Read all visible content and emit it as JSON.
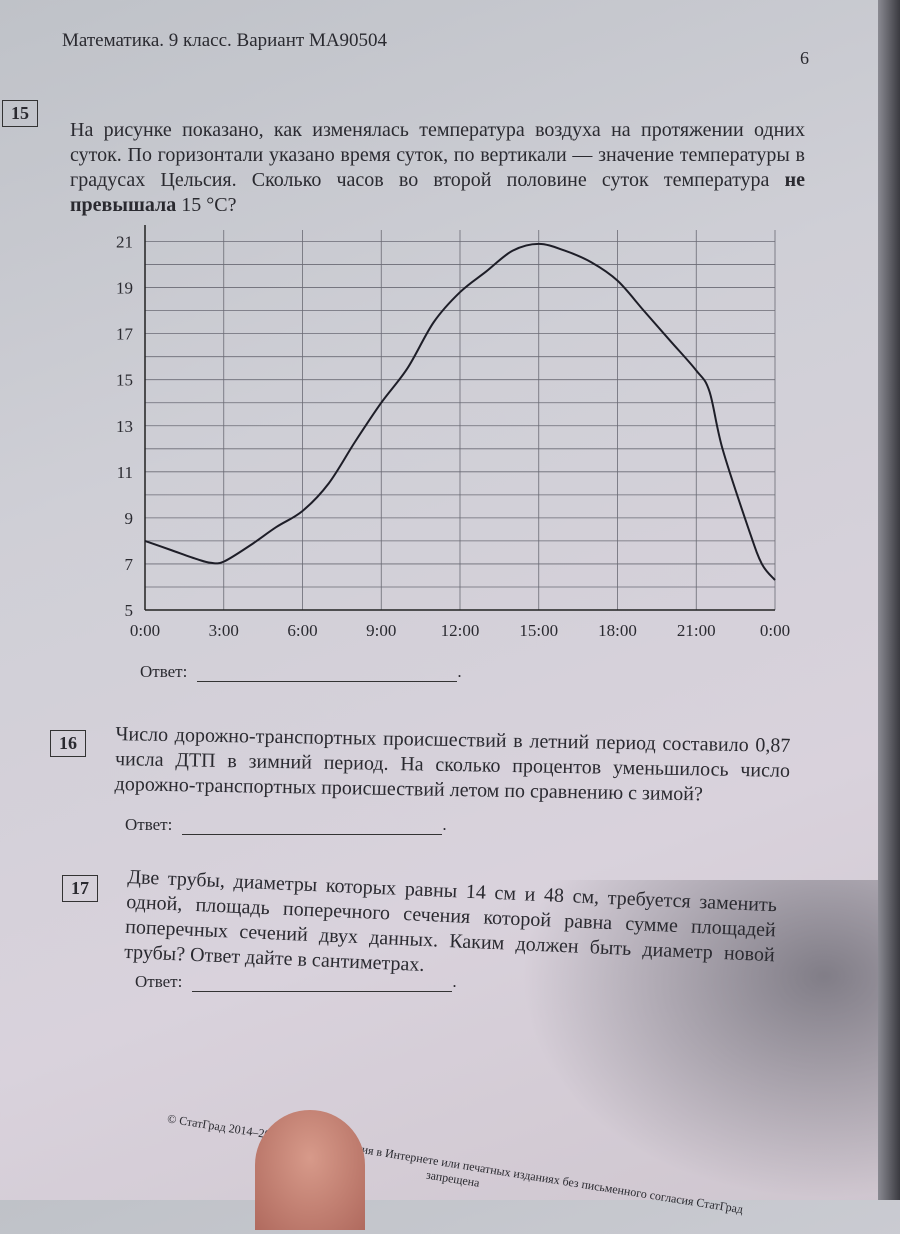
{
  "header": {
    "title": "Математика. 9 класс. Вариант МА90504",
    "page_number": "6"
  },
  "questions": [
    {
      "number": "15",
      "text_before_bold": "На рисунке показано, как изменялась температура воздуха на протяжении одних суток. По горизонтали указано время суток, по вертикали — значение температуры в градусах Цельсия. Сколько часов во второй половине суток температура ",
      "text_bold": "не превышала",
      "text_after_bold": " 15 °C?",
      "answer_label": "Ответ:"
    },
    {
      "number": "16",
      "text": "Число дорожно-транспортных происшествий в летний период составило 0,87 числа ДТП в зимний период. На сколько процентов уменьшилось число дорожно-транспортных происшествий летом по сравнению с зимой?",
      "answer_label": "Ответ:"
    },
    {
      "number": "17",
      "text": "Две трубы, диаметры которых равны 14 см и 48 см, требуется заменить одной, площадь поперечного сечения которой равна сумме площадей поперечных сечений двух данных. Каким должен быть диаметр новой трубы? Ответ дайте в сантиметрах.",
      "answer_label": "Ответ:"
    }
  ],
  "footer": {
    "text": "© СтатГрад 2014–2015 уч. г. Публикация в Интернете или печатных изданиях без письменного согласия СтатГрад запрещена"
  },
  "chart_data": {
    "type": "line",
    "title": "",
    "xlabel": "",
    "ylabel": "",
    "x_ticks": [
      "0:00",
      "3:00",
      "6:00",
      "9:00",
      "12:00",
      "15:00",
      "18:00",
      "21:00",
      "0:00"
    ],
    "y_ticks": [
      "5",
      "7",
      "9",
      "11",
      "13",
      "15",
      "17",
      "19",
      "21"
    ],
    "xlim": [
      0,
      24
    ],
    "ylim": [
      5,
      21.5
    ],
    "grid": true,
    "x": [
      0,
      1,
      2,
      2.5,
      3,
      4,
      5,
      6,
      7,
      8,
      9,
      10,
      11,
      12,
      13,
      14,
      15,
      16,
      17,
      18,
      19,
      20,
      21,
      21.5,
      22,
      23,
      23.5,
      24
    ],
    "y": [
      8,
      7.6,
      7.2,
      7.05,
      7.1,
      7.8,
      8.6,
      9.3,
      10.5,
      12.3,
      14.0,
      15.5,
      17.5,
      18.8,
      19.7,
      20.6,
      20.9,
      20.6,
      20.1,
      19.3,
      18.0,
      16.7,
      15.4,
      14.5,
      12,
      8.5,
      7,
      6.3
    ],
    "line_color": "#1e1e28"
  }
}
